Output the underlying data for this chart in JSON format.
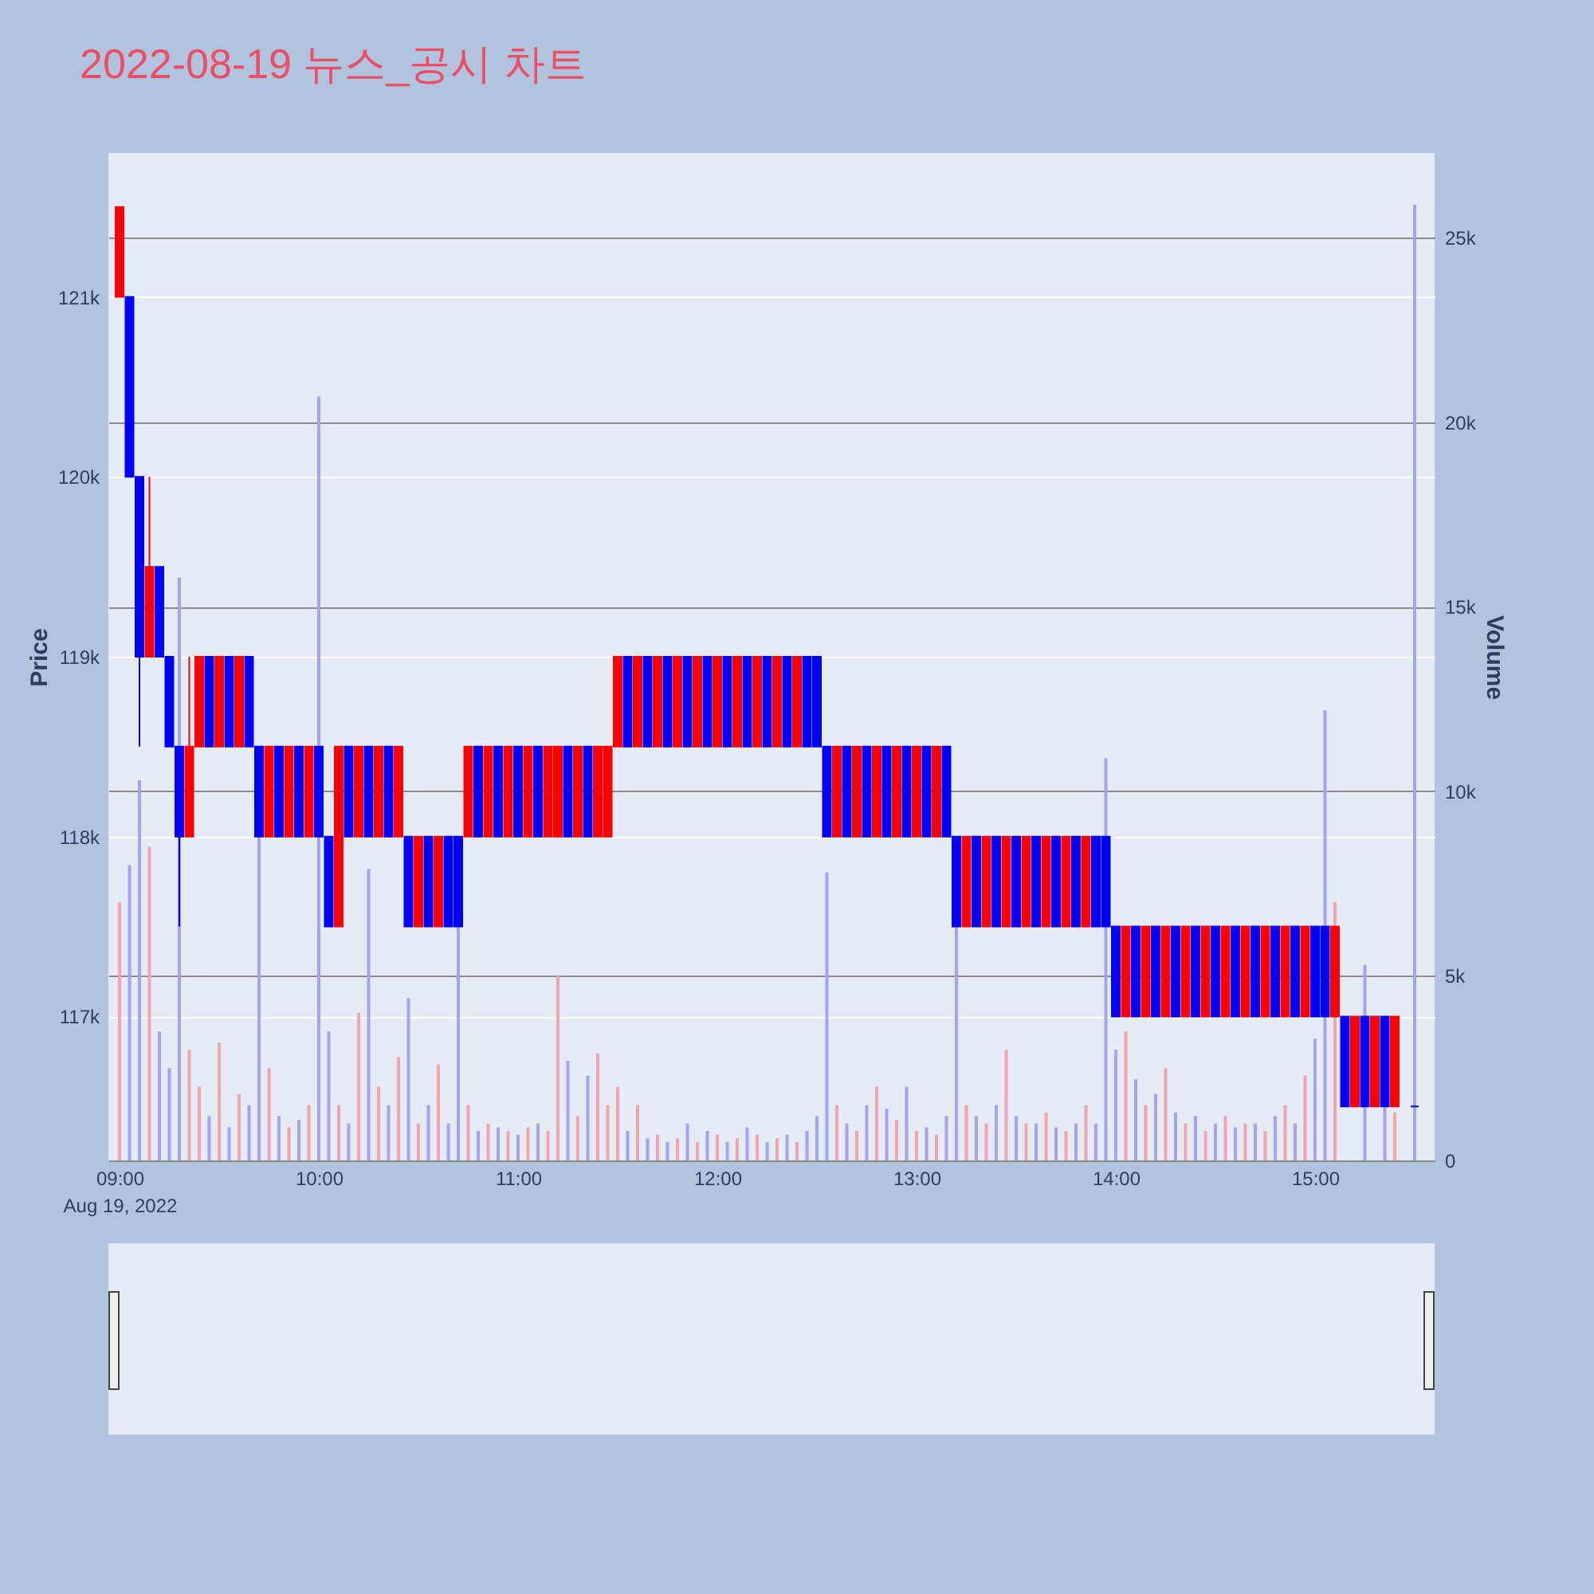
{
  "chart_data": {
    "type": "candlestick",
    "title": "2022-08-19 뉴스_공시 차트",
    "ylabel": "Price",
    "y2label": "Volume",
    "x": [
      9,
      9.05,
      9.1,
      9.15,
      9.2,
      9.25,
      9.3,
      9.35,
      9.4,
      9.45,
      9.5,
      9.55,
      9.6,
      9.65,
      9.7,
      9.75,
      9.8,
      9.85,
      9.9,
      9.95,
      10,
      10.05,
      10.1,
      10.15,
      10.2,
      10.25,
      10.3,
      10.35,
      10.4,
      10.45,
      10.5,
      10.55,
      10.6,
      10.65,
      10.7,
      10.75,
      10.8,
      10.85,
      10.9,
      10.95,
      11,
      11.05,
      11.1,
      11.15,
      11.2,
      11.25,
      11.3,
      11.35,
      11.4,
      11.45,
      11.5,
      11.55,
      11.6,
      11.65,
      11.7,
      11.75,
      11.8,
      11.85,
      11.9,
      11.95,
      12,
      12.05,
      12.1,
      12.15,
      12.2,
      12.25,
      12.3,
      12.35,
      12.4,
      12.45,
      12.5,
      12.55,
      12.6,
      12.65,
      12.7,
      12.75,
      12.8,
      12.85,
      12.9,
      12.95,
      13,
      13.05,
      13.1,
      13.15,
      13.2,
      13.25,
      13.3,
      13.35,
      13.4,
      13.45,
      13.5,
      13.55,
      13.6,
      13.65,
      13.7,
      13.75,
      13.8,
      13.85,
      13.9,
      13.95,
      14,
      14.05,
      14.1,
      14.15,
      14.2,
      14.25,
      14.3,
      14.35,
      14.4,
      14.45,
      14.5,
      14.55,
      14.6,
      14.65,
      14.7,
      14.75,
      14.8,
      14.85,
      14.9,
      14.95,
      15,
      15.05,
      15.1,
      15.15,
      15.2,
      15.25,
      15.3,
      15.35,
      15.4,
      15.5
    ],
    "series": [
      {
        "type": "bar",
        "axis": "y2",
        "values": [
          7000,
          8000,
          10300,
          8500,
          3500,
          2500,
          15800,
          3000,
          2000,
          1200,
          3200,
          900,
          1800,
          1500,
          8800,
          2500,
          1200,
          900,
          1100,
          1500,
          20700,
          3500,
          1500,
          1000,
          4000,
          7900,
          2000,
          1500,
          2800,
          4400,
          1000,
          1500,
          2600,
          1000,
          6400,
          1500,
          800,
          1000,
          900,
          800,
          700,
          900,
          1000,
          800,
          5000,
          2700,
          1200,
          2300,
          2900,
          1500,
          2000,
          800,
          1500,
          600,
          700,
          500,
          600,
          1000,
          500,
          800,
          700,
          500,
          600,
          900,
          700,
          500,
          600,
          700,
          500,
          800,
          1200,
          7800,
          1500,
          1000,
          800,
          1500,
          2000,
          1400,
          1100,
          2000,
          800,
          900,
          700,
          1200,
          6400,
          1500,
          1200,
          1000,
          1500,
          3000,
          1200,
          1000,
          1000,
          1300,
          900,
          800,
          1000,
          1500,
          1000,
          10900,
          3000,
          3500,
          2200,
          1500,
          1800,
          2500,
          1300,
          1000,
          1200,
          800,
          1000,
          1200,
          900,
          1000,
          1000,
          800,
          1200,
          1500,
          1000,
          2300,
          3300,
          12200,
          7000,
          null,
          null,
          5300,
          null,
          1500,
          1300,
          25900
        ],
        "colors": [
          "#f4a4ad",
          "#a4a4f4",
          "#a4a4f4",
          "#f4a4ad",
          "#a4a4f4",
          "#a4a4f4",
          "#a4a4f4",
          "#f4a4ad",
          "#f4a4ad",
          "#a4a4f4",
          "#f4a4ad",
          "#a4a4f4",
          "#f4a4ad",
          "#a4a4f4",
          "#a4a4f4",
          "#f4a4ad",
          "#a4a4f4",
          "#f4a4ad",
          "#a4a4f4",
          "#f4a4ad",
          "#a4a4f4",
          "#a4a4f4",
          "#f4a4ad",
          "#a4a4f4",
          "#f4a4ad",
          "#a4a4f4",
          "#f4a4ad",
          "#a4a4f4",
          "#f4a4ad",
          "#a4a4f4",
          "#f4a4ad",
          "#a4a4f4",
          "#f4a4ad",
          "#a4a4f4",
          "#a4a4f4",
          "#f4a4ad",
          "#a4a4f4",
          "#f4a4ad",
          "#a4a4f4",
          "#f4a4ad",
          "#a4a4f4",
          "#f4a4ad",
          "#a4a4f4",
          "#f4a4ad",
          "#f4a4ad",
          "#a4a4f4",
          "#f4a4ad",
          "#a4a4f4",
          "#f4a4ad",
          "#f4a4ad",
          "#f4a4ad",
          "#a4a4f4",
          "#f4a4ad",
          "#a4a4f4",
          "#f4a4ad",
          "#a4a4f4",
          "#f4a4ad",
          "#a4a4f4",
          "#f4a4ad",
          "#a4a4f4",
          "#f4a4ad",
          "#a4a4f4",
          "#f4a4ad",
          "#a4a4f4",
          "#f4a4ad",
          "#a4a4f4",
          "#f4a4ad",
          "#a4a4f4",
          "#f4a4ad",
          "#a4a4f4",
          "#a4a4f4",
          "#a4a4f4",
          "#f4a4ad",
          "#a4a4f4",
          "#f4a4ad",
          "#a4a4f4",
          "#f4a4ad",
          "#a4a4f4",
          "#f4a4ad",
          "#a4a4f4",
          "#f4a4ad",
          "#a4a4f4",
          "#f4a4ad",
          "#a4a4f4",
          "#a4a4f4",
          "#f4a4ad",
          "#a4a4f4",
          "#f4a4ad",
          "#a4a4f4",
          "#f4a4ad",
          "#a4a4f4",
          "#f4a4ad",
          "#a4a4f4",
          "#f4a4ad",
          "#a4a4f4",
          "#f4a4ad",
          "#a4a4f4",
          "#f4a4ad",
          "#a4a4f4",
          "#a4a4f4",
          "#a4a4f4",
          "#f4a4ad",
          "#a4a4f4",
          "#f4a4ad",
          "#a4a4f4",
          "#f4a4ad",
          "#a4a4f4",
          "#f4a4ad",
          "#a4a4f4",
          "#f4a4ad",
          "#a4a4f4",
          "#f4a4ad",
          "#a4a4f4",
          "#f4a4ad",
          "#a4a4f4",
          "#f4a4ad",
          "#a4a4f4",
          "#f4a4ad",
          "#a4a4f4",
          "#f4a4ad",
          "#a4a4f4",
          "#a4a4f4",
          "#f4a4ad",
          "#a4a4f4",
          "#f4a4ad",
          "#a4a4f4",
          "#f4a4ad",
          "#a4a4f4",
          "#f4a4ad",
          "#a4a4f4"
        ]
      },
      {
        "type": "candlestick",
        "ohlc": [
          [
            121000,
            121500,
            121000,
            121500
          ],
          [
            121000,
            121000,
            120000,
            120000
          ],
          [
            120000,
            120000,
            118500,
            119000
          ],
          [
            119000,
            120000,
            119000,
            119500
          ],
          [
            119500,
            119500,
            119000,
            119000
          ],
          [
            119000,
            119000,
            118500,
            118500
          ],
          [
            118500,
            118500,
            117500,
            118000
          ],
          [
            118000,
            119000,
            118000,
            118500
          ],
          [
            118500,
            119000,
            118500,
            119000
          ],
          [
            119000,
            119000,
            118500,
            118500
          ],
          [
            118500,
            119000,
            118500,
            119000
          ],
          [
            119000,
            119000,
            118500,
            118500
          ],
          [
            118500,
            119000,
            118500,
            119000
          ],
          [
            119000,
            119000,
            118500,
            118500
          ],
          [
            118500,
            118500,
            118000,
            118000
          ],
          [
            118000,
            118500,
            118000,
            118500
          ],
          [
            118500,
            118500,
            118000,
            118000
          ],
          [
            118000,
            118500,
            118000,
            118500
          ],
          [
            118500,
            118500,
            118000,
            118000
          ],
          [
            118000,
            118500,
            118000,
            118500
          ],
          [
            118500,
            118500,
            118000,
            118000
          ],
          [
            118000,
            118000,
            117500,
            117500
          ],
          [
            117500,
            118500,
            117500,
            118500
          ],
          [
            118500,
            118500,
            118000,
            118000
          ],
          [
            118000,
            118500,
            118000,
            118500
          ],
          [
            118500,
            118500,
            118000,
            118000
          ],
          [
            118000,
            118500,
            118000,
            118500
          ],
          [
            118500,
            118500,
            118000,
            118000
          ],
          [
            118000,
            118500,
            118000,
            118500
          ],
          [
            118000,
            118000,
            117500,
            117500
          ],
          [
            117500,
            118000,
            117500,
            118000
          ],
          [
            118000,
            118000,
            117500,
            117500
          ],
          [
            117500,
            118000,
            117500,
            118000
          ],
          [
            118000,
            118000,
            117500,
            117500
          ],
          [
            118000,
            118000,
            117500,
            117500
          ],
          [
            118000,
            118500,
            118000,
            118500
          ],
          [
            118500,
            118500,
            118000,
            118000
          ],
          [
            118000,
            118500,
            118000,
            118500
          ],
          [
            118500,
            118500,
            118000,
            118000
          ],
          [
            118000,
            118500,
            118000,
            118500
          ],
          [
            118500,
            118500,
            118000,
            118000
          ],
          [
            118000,
            118500,
            118000,
            118500
          ],
          [
            118500,
            118500,
            118000,
            118000
          ],
          [
            118000,
            118500,
            118000,
            118500
          ],
          [
            118000,
            118500,
            118000,
            118500
          ],
          [
            118500,
            118500,
            118000,
            118000
          ],
          [
            118000,
            118500,
            118000,
            118500
          ],
          [
            118500,
            118500,
            118000,
            118000
          ],
          [
            118000,
            118500,
            118000,
            118500
          ],
          [
            118000,
            118500,
            118000,
            118500
          ],
          [
            118500,
            119000,
            118500,
            119000
          ],
          [
            119000,
            119000,
            118500,
            118500
          ],
          [
            118500,
            119000,
            118500,
            119000
          ],
          [
            119000,
            119000,
            118500,
            118500
          ],
          [
            118500,
            119000,
            118500,
            119000
          ],
          [
            119000,
            119000,
            118500,
            118500
          ],
          [
            118500,
            119000,
            118500,
            119000
          ],
          [
            119000,
            119000,
            118500,
            118500
          ],
          [
            118500,
            119000,
            118500,
            119000
          ],
          [
            119000,
            119000,
            118500,
            118500
          ],
          [
            118500,
            119000,
            118500,
            119000
          ],
          [
            119000,
            119000,
            118500,
            118500
          ],
          [
            118500,
            119000,
            118500,
            119000
          ],
          [
            119000,
            119000,
            118500,
            118500
          ],
          [
            118500,
            119000,
            118500,
            119000
          ],
          [
            119000,
            119000,
            118500,
            118500
          ],
          [
            118500,
            119000,
            118500,
            119000
          ],
          [
            119000,
            119000,
            118500,
            118500
          ],
          [
            118500,
            119000,
            118500,
            119000
          ],
          [
            119000,
            119000,
            118500,
            118500
          ],
          [
            119000,
            119000,
            118500,
            118500
          ],
          [
            118500,
            118500,
            118000,
            118000
          ],
          [
            118000,
            118500,
            118000,
            118500
          ],
          [
            118500,
            118500,
            118000,
            118000
          ],
          [
            118000,
            118500,
            118000,
            118500
          ],
          [
            118500,
            118500,
            118000,
            118000
          ],
          [
            118000,
            118500,
            118000,
            118500
          ],
          [
            118500,
            118500,
            118000,
            118000
          ],
          [
            118000,
            118500,
            118000,
            118500
          ],
          [
            118500,
            118500,
            118000,
            118000
          ],
          [
            118000,
            118500,
            118000,
            118500
          ],
          [
            118500,
            118500,
            118000,
            118000
          ],
          [
            118000,
            118500,
            118000,
            118500
          ],
          [
            118500,
            118500,
            118000,
            118000
          ],
          [
            118000,
            118000,
            117500,
            117500
          ],
          [
            117500,
            118000,
            117500,
            118000
          ],
          [
            118000,
            118000,
            117500,
            117500
          ],
          [
            117500,
            118000,
            117500,
            118000
          ],
          [
            118000,
            118000,
            117500,
            117500
          ],
          [
            117500,
            118000,
            117500,
            118000
          ],
          [
            118000,
            118000,
            117500,
            117500
          ],
          [
            117500,
            118000,
            117500,
            118000
          ],
          [
            118000,
            118000,
            117500,
            117500
          ],
          [
            117500,
            118000,
            117500,
            118000
          ],
          [
            118000,
            118000,
            117500,
            117500
          ],
          [
            117500,
            118000,
            117500,
            118000
          ],
          [
            118000,
            118000,
            117500,
            117500
          ],
          [
            117500,
            118000,
            117500,
            118000
          ],
          [
            118000,
            118000,
            117500,
            117500
          ],
          [
            118000,
            118000,
            117500,
            117500
          ],
          [
            117500,
            117500,
            117000,
            117000
          ],
          [
            117000,
            117500,
            117000,
            117500
          ],
          [
            117500,
            117500,
            117000,
            117000
          ],
          [
            117000,
            117500,
            117000,
            117500
          ],
          [
            117500,
            117500,
            117000,
            117000
          ],
          [
            117000,
            117500,
            117000,
            117500
          ],
          [
            117500,
            117500,
            117000,
            117000
          ],
          [
            117000,
            117500,
            117000,
            117500
          ],
          [
            117500,
            117500,
            117000,
            117000
          ],
          [
            117000,
            117500,
            117000,
            117500
          ],
          [
            117500,
            117500,
            117000,
            117000
          ],
          [
            117000,
            117500,
            117000,
            117500
          ],
          [
            117500,
            117500,
            117000,
            117000
          ],
          [
            117000,
            117500,
            117000,
            117500
          ],
          [
            117500,
            117500,
            117000,
            117000
          ],
          [
            117000,
            117500,
            117000,
            117500
          ],
          [
            117500,
            117500,
            117000,
            117000
          ],
          [
            117000,
            117500,
            117000,
            117500
          ],
          [
            117500,
            117500,
            117000,
            117000
          ],
          [
            117000,
            117500,
            117000,
            117500
          ],
          [
            117500,
            117500,
            117000,
            117000
          ],
          [
            117500,
            117500,
            117000,
            117000
          ],
          [
            117000,
            117500,
            117000,
            117500
          ],
          [
            117000,
            117000,
            116500,
            116500
          ],
          [
            116500,
            117000,
            116500,
            117000
          ],
          [
            117000,
            117000,
            116500,
            116500
          ],
          [
            116500,
            117000,
            116500,
            117000
          ],
          [
            117000,
            117000,
            116500,
            116500
          ],
          [
            116500,
            117000,
            116500,
            117000
          ],
          [
            116500,
            116500,
            116500,
            116500
          ]
        ],
        "colors": [
          "#ff0000",
          "#0000ff",
          "#0000ff",
          "#ff0000",
          "#0000ff",
          "#0000ff",
          "#0000ff",
          "#ff0000",
          "#ff0000",
          "#0000ff",
          "#ff0000",
          "#0000ff",
          "#ff0000",
          "#0000ff",
          "#0000ff",
          "#ff0000",
          "#0000ff",
          "#ff0000",
          "#0000ff",
          "#ff0000",
          "#0000ff",
          "#0000ff",
          "#ff0000",
          "#0000ff",
          "#ff0000",
          "#0000ff",
          "#ff0000",
          "#0000ff",
          "#ff0000",
          "#0000ff",
          "#ff0000",
          "#0000ff",
          "#ff0000",
          "#0000ff",
          "#0000ff",
          "#ff0000",
          "#0000ff",
          "#ff0000",
          "#0000ff",
          "#ff0000",
          "#0000ff",
          "#ff0000",
          "#0000ff",
          "#ff0000",
          "#ff0000",
          "#0000ff",
          "#ff0000",
          "#0000ff",
          "#ff0000",
          "#ff0000",
          "#ff0000",
          "#0000ff",
          "#ff0000",
          "#0000ff",
          "#ff0000",
          "#0000ff",
          "#ff0000",
          "#0000ff",
          "#ff0000",
          "#0000ff",
          "#ff0000",
          "#0000ff",
          "#ff0000",
          "#0000ff",
          "#ff0000",
          "#0000ff",
          "#ff0000",
          "#0000ff",
          "#ff0000",
          "#0000ff",
          "#0000ff",
          "#0000ff",
          "#ff0000",
          "#0000ff",
          "#ff0000",
          "#0000ff",
          "#ff0000",
          "#0000ff",
          "#ff0000",
          "#0000ff",
          "#ff0000",
          "#0000ff",
          "#ff0000",
          "#0000ff",
          "#0000ff",
          "#ff0000",
          "#0000ff",
          "#ff0000",
          "#0000ff",
          "#ff0000",
          "#0000ff",
          "#ff0000",
          "#0000ff",
          "#ff0000",
          "#0000ff",
          "#ff0000",
          "#0000ff",
          "#ff0000",
          "#0000ff",
          "#0000ff",
          "#0000ff",
          "#ff0000",
          "#0000ff",
          "#ff0000",
          "#0000ff",
          "#ff0000",
          "#0000ff",
          "#ff0000",
          "#0000ff",
          "#ff0000",
          "#0000ff",
          "#ff0000",
          "#0000ff",
          "#ff0000",
          "#0000ff",
          "#ff0000",
          "#0000ff",
          "#ff0000",
          "#0000ff",
          "#ff0000",
          "#0000ff",
          "#0000ff",
          "#ff0000",
          "#0000ff",
          "#ff0000",
          "#0000ff",
          "#ff0000",
          "#0000ff",
          "#ff0000",
          "#0000ff"
        ]
      }
    ],
    "xlim": [
      8.944,
      15.6
    ],
    "xticks": [
      {
        "value": 9,
        "label": "09:00\nAug 19, 2022"
      },
      {
        "value": 10,
        "label": "10:00"
      },
      {
        "value": 11,
        "label": "11:00"
      },
      {
        "value": 12,
        "label": "12:00"
      },
      {
        "value": 13,
        "label": "13:00"
      },
      {
        "value": 14,
        "label": "14:00"
      },
      {
        "value": 15,
        "label": "15:00"
      }
    ],
    "ylim": [
      116200,
      121800
    ],
    "yticks": [
      {
        "value": 117000,
        "label": "117k"
      },
      {
        "value": 118000,
        "label": "118k"
      },
      {
        "value": 119000,
        "label": "119k"
      },
      {
        "value": 120000,
        "label": "120k"
      },
      {
        "value": 121000,
        "label": "121k"
      }
    ],
    "y2lim": [
      0,
      27300
    ],
    "y2ticks": [
      0,
      {
        "value": 5000,
        "label": "5k"
      },
      {
        "value": 10000,
        "label": "10k"
      },
      {
        "value": 15000,
        "label": "15k"
      },
      {
        "value": 20000,
        "label": "20k"
      },
      {
        "value": 25000,
        "label": "25k"
      }
    ],
    "grid": "y"
  }
}
